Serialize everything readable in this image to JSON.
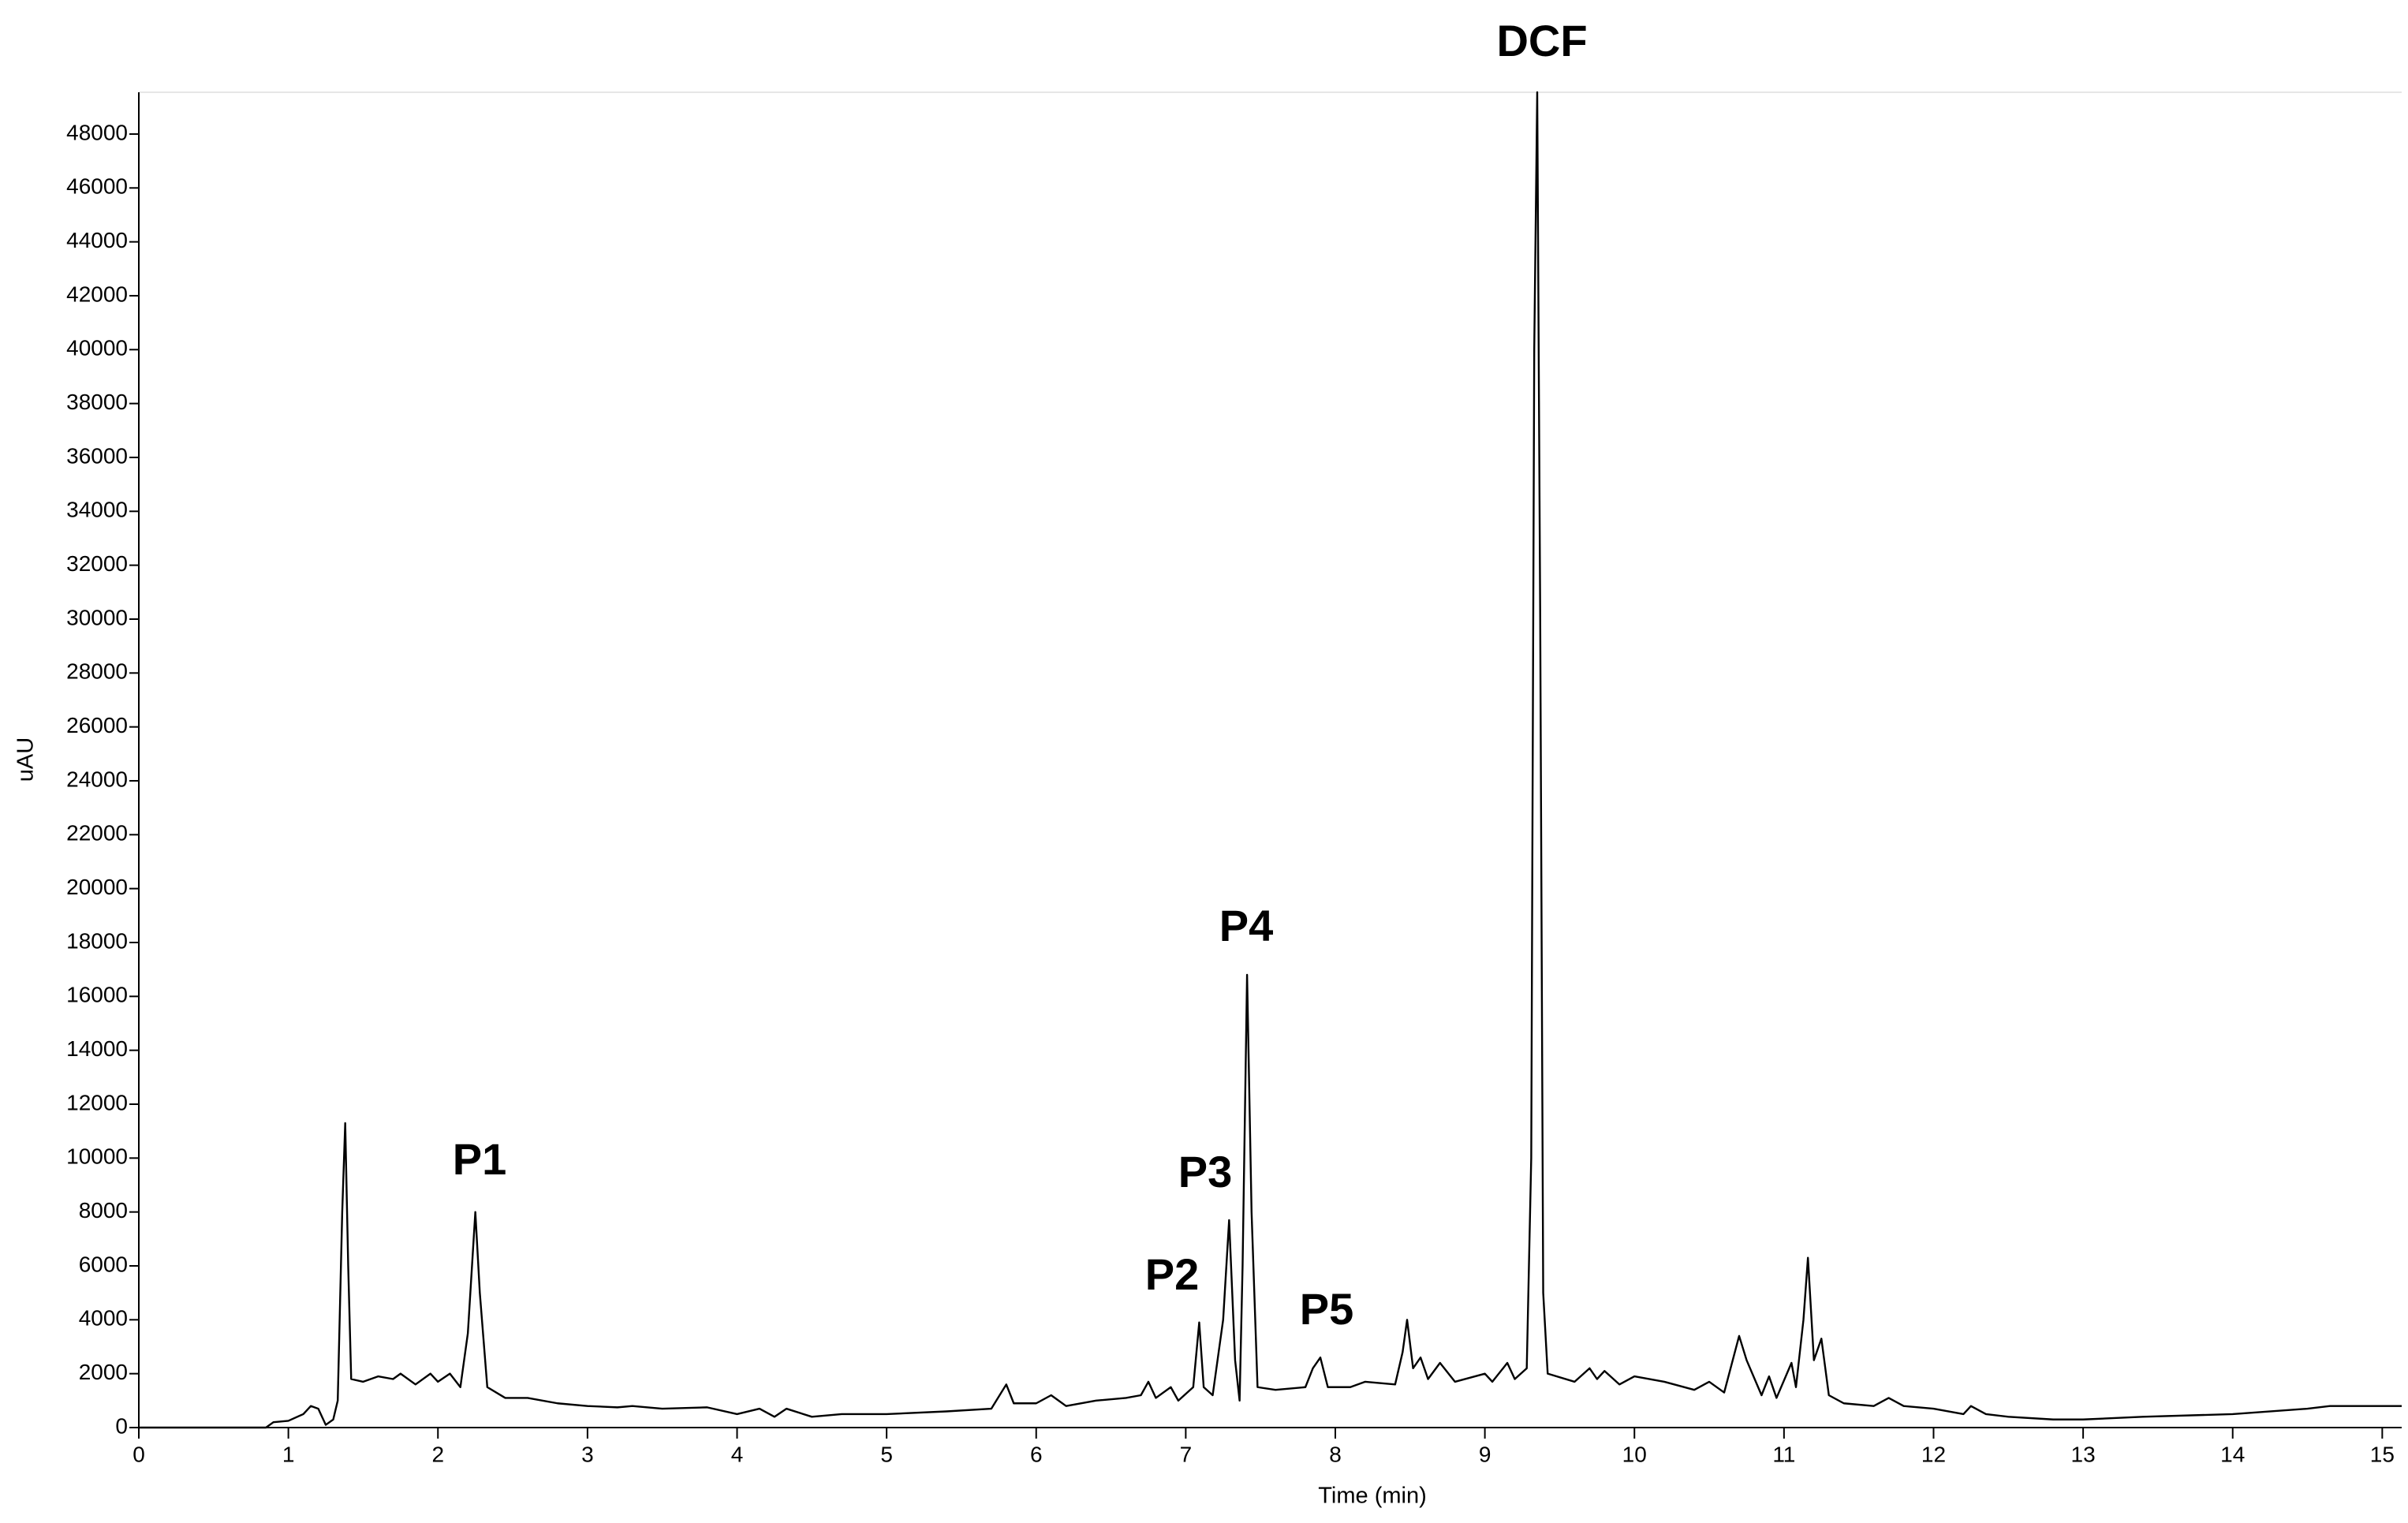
{
  "chart_data": {
    "type": "line",
    "color": "#000000",
    "x_label": "Time (min)",
    "y_label": "uAU",
    "annotations": [
      "P1",
      "P2",
      "P3",
      "P4",
      "P5",
      "DCF"
    ],
    "xlim": [
      0,
      15.13
    ],
    "ylim": [
      0,
      49550
    ],
    "xticks": [
      0,
      1,
      2,
      3,
      4,
      5,
      6,
      7,
      8,
      9,
      10,
      11,
      12,
      13,
      14,
      15
    ],
    "yticks": [
      0,
      2000,
      4000,
      6000,
      8000,
      10000,
      12000,
      14000,
      16000,
      18000,
      20000,
      22000,
      24000,
      26000,
      28000,
      30000,
      32000,
      34000,
      36000,
      38000,
      40000,
      42000,
      44000,
      46000,
      48000
    ],
    "x": [
      0,
      0.85,
      0.9,
      1.0,
      1.1,
      1.15,
      1.2,
      1.25,
      1.3,
      1.33,
      1.36,
      1.38,
      1.4,
      1.42,
      1.5,
      1.6,
      1.7,
      1.75,
      1.85,
      1.95,
      2.0,
      2.08,
      2.15,
      2.2,
      2.25,
      2.28,
      2.33,
      2.45,
      2.6,
      2.8,
      3.0,
      3.2,
      3.3,
      3.5,
      3.8,
      4.0,
      4.15,
      4.25,
      4.33,
      4.5,
      4.7,
      5.0,
      5.4,
      5.7,
      5.8,
      5.85,
      6.0,
      6.1,
      6.2,
      6.4,
      6.6,
      6.7,
      6.75,
      6.8,
      6.9,
      6.95,
      7.05,
      7.09,
      7.12,
      7.18,
      7.25,
      7.29,
      7.33,
      7.36,
      7.38,
      7.41,
      7.44,
      7.48,
      7.6,
      7.8,
      7.85,
      7.9,
      7.95,
      8.1,
      8.2,
      8.4,
      8.45,
      8.48,
      8.52,
      8.57,
      8.62,
      8.7,
      8.8,
      9.0,
      9.05,
      9.15,
      9.2,
      9.28,
      9.31,
      9.33,
      9.35,
      9.37,
      9.39,
      9.42,
      9.6,
      9.7,
      9.75,
      9.8,
      9.9,
      10.0,
      10.2,
      10.4,
      10.5,
      10.6,
      10.7,
      10.75,
      10.85,
      10.9,
      10.95,
      11.05,
      11.08,
      11.13,
      11.16,
      11.2,
      11.25,
      11.3,
      11.4,
      11.6,
      11.7,
      11.8,
      12.0,
      12.2,
      12.25,
      12.35,
      12.5,
      12.8,
      13.0,
      13.4,
      14.0,
      14.5,
      14.65,
      15.13
    ],
    "values": [
      0,
      0,
      200,
      250,
      500,
      800,
      700,
      100,
      300,
      1000,
      8000,
      11300,
      6000,
      1800,
      1700,
      1900,
      1800,
      2000,
      1600,
      2000,
      1700,
      2000,
      1500,
      3500,
      8000,
      5000,
      1500,
      1100,
      1100,
      900,
      800,
      750,
      800,
      700,
      750,
      500,
      700,
      400,
      700,
      400,
      500,
      500,
      600,
      700,
      1600,
      900,
      900,
      1200,
      800,
      1000,
      1100,
      1200,
      1700,
      1100,
      1500,
      1000,
      1500,
      3900,
      1500,
      1200,
      4000,
      7700,
      2500,
      1000,
      6000,
      16800,
      8000,
      1500,
      1400,
      1500,
      2200,
      2600,
      1500,
      1500,
      1700,
      1600,
      2800,
      4000,
      2200,
      2600,
      1800,
      2400,
      1700,
      2000,
      1700,
      2400,
      1800,
      2200,
      10000,
      40000,
      49550,
      30000,
      5000,
      2000,
      1700,
      2200,
      1800,
      2100,
      1600,
      1900,
      1700,
      1400,
      1700,
      1300,
      3400,
      2500,
      1200,
      1900,
      1100,
      2400,
      1500,
      4000,
      6300,
      2500,
      3300,
      1200,
      900,
      800,
      1100,
      800,
      700,
      500,
      800,
      500,
      400,
      300,
      300,
      400,
      500,
      700,
      800,
      800
    ]
  }
}
